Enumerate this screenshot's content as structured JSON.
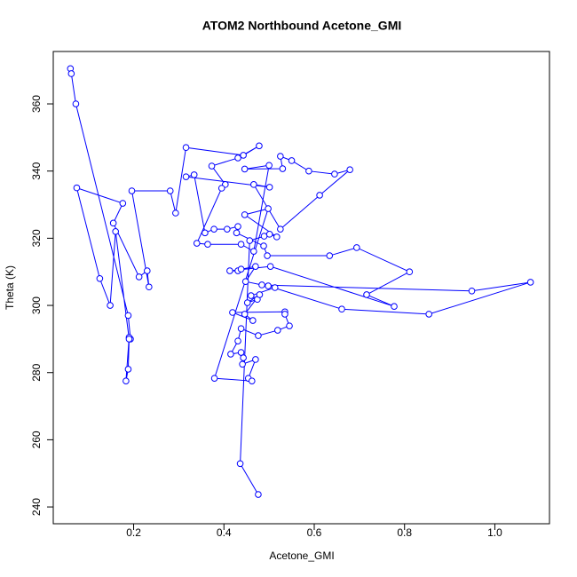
{
  "chart_data": {
    "type": "line",
    "marker": "circle",
    "title": "ATOM2 Northbound Acetone_GMI",
    "x_label": "Acetone_GMI",
    "y_label": "Theta (K)",
    "color": "#0000ff",
    "xlim": [
      0.022,
      1.121
    ],
    "ylim": [
      235,
      375.6
    ],
    "xticks": [
      0.2,
      0.4,
      0.6,
      0.8,
      {
        "value": 1.0,
        "label": "1.0"
      }
    ],
    "yticks": [
      240,
      260,
      280,
      300,
      320,
      340,
      360
    ],
    "x": [
      0.06,
      0.062,
      0.072,
      0.188,
      0.193,
      0.19,
      0.183,
      0.188,
      0.19,
      0.16,
      0.148,
      0.125,
      0.074,
      0.176,
      0.155,
      0.212,
      0.23,
      0.234,
      0.196,
      0.281,
      0.293,
      0.316,
      0.443,
      0.478,
      0.431,
      0.373,
      0.403,
      0.395,
      0.34,
      0.364,
      0.438,
      0.466,
      0.5,
      0.446,
      0.53,
      0.525,
      0.55,
      0.588,
      0.645,
      0.679,
      0.612,
      0.525,
      0.466,
      0.501,
      0.316,
      0.334,
      0.358,
      0.378,
      0.407,
      0.431,
      0.428,
      0.488,
      0.496,
      0.634,
      0.694,
      0.811,
      0.716,
      0.777,
      0.503,
      0.413,
      0.431,
      0.438,
      0.47,
      0.448,
      0.484,
      0.949,
      1.079,
      0.854,
      0.661,
      0.498,
      0.513,
      0.46,
      0.474,
      0.452,
      0.479,
      0.446,
      0.464,
      0.419,
      0.535,
      0.535,
      0.545,
      0.519,
      0.476,
      0.438,
      0.431,
      0.415,
      0.438,
      0.443,
      0.441,
      0.47,
      0.454,
      0.462,
      0.379,
      0.498,
      0.446,
      0.517,
      0.501,
      0.489,
      0.457,
      0.436,
      0.476
    ],
    "y": [
      370.5,
      369,
      360,
      297,
      290,
      290.5,
      277.5,
      281,
      290,
      322,
      300,
      308,
      335,
      330.4,
      324.5,
      308.5,
      310.3,
      305.5,
      334.1,
      334.1,
      327.5,
      347,
      344.7,
      347.5,
      343.9,
      341.5,
      336,
      334.9,
      318.5,
      318.2,
      318.2,
      316.1,
      341.7,
      340.6,
      340.7,
      344.4,
      343.1,
      340,
      339.1,
      340.4,
      332.8,
      322.7,
      336,
      335.2,
      338.3,
      338.9,
      321.6,
      322.7,
      322.7,
      323.5,
      321.6,
      317.7,
      314.8,
      314.8,
      317.2,
      310,
      303.2,
      299.7,
      311.6,
      310.3,
      310.3,
      310.8,
      311.6,
      307.1,
      306.1,
      304.3,
      306.9,
      297.4,
      298.9,
      305.8,
      305.3,
      302.9,
      301.8,
      300.8,
      303.2,
      297.4,
      295.5,
      297.9,
      298.1,
      297.4,
      293.9,
      292.6,
      291,
      293.1,
      289.4,
      285.5,
      286,
      284.4,
      282.5,
      283.9,
      278.3,
      277.5,
      278.3,
      328.8,
      327,
      320.4,
      321.2,
      320.6,
      319.3,
      252.9,
      243.7
    ]
  }
}
